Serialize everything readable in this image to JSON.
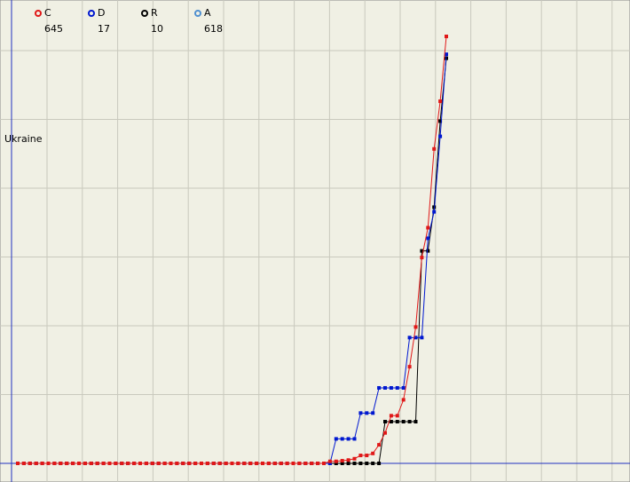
{
  "chart_data": {
    "type": "line",
    "label": "Ukraine",
    "categories": [
      null,
      null,
      null,
      null,
      null,
      null,
      null,
      null,
      null,
      null,
      null,
      null,
      null,
      null,
      null,
      null,
      null,
      null,
      null,
      null,
      null,
      null,
      null,
      null,
      null,
      null,
      null,
      null,
      null,
      null,
      null,
      null,
      null,
      null,
      null,
      null,
      null,
      null,
      null,
      null,
      null,
      null,
      null,
      null,
      null,
      null,
      null,
      null,
      null,
      null,
      null,
      null,
      null,
      null,
      null,
      null,
      null,
      null,
      null,
      null,
      null,
      null,
      null,
      null,
      null,
      null,
      null,
      null,
      null,
      null,
      null
    ],
    "ylim": [
      0,
      700
    ],
    "series": [
      {
        "name": "C",
        "color": "#e01818",
        "total": 645,
        "values": [
          0,
          0,
          0,
          0,
          0,
          0,
          0,
          0,
          0,
          0,
          0,
          0,
          0,
          0,
          0,
          0,
          0,
          0,
          0,
          0,
          0,
          0,
          0,
          0,
          0,
          0,
          0,
          0,
          0,
          0,
          0,
          0,
          0,
          0,
          0,
          0,
          0,
          0,
          0,
          0,
          0,
          0,
          0,
          0,
          0,
          0,
          0,
          0,
          0,
          0,
          0,
          3,
          3,
          4,
          5,
          7,
          12,
          12,
          15,
          28,
          46,
          72,
          72,
          96,
          146,
          206,
          311,
          356,
          475,
          547,
          645
        ]
      },
      {
        "name": "D",
        "color": "#0018d0",
        "total": 17,
        "values": [
          0,
          0,
          0,
          0,
          0,
          0,
          0,
          0,
          0,
          0,
          0,
          0,
          0,
          0,
          0,
          0,
          0,
          0,
          0,
          0,
          0,
          0,
          0,
          0,
          0,
          0,
          0,
          0,
          0,
          0,
          0,
          0,
          0,
          0,
          0,
          0,
          0,
          0,
          0,
          0,
          0,
          0,
          0,
          0,
          0,
          0,
          0,
          0,
          0,
          0,
          0,
          0,
          37,
          37,
          37,
          37,
          76,
          76,
          76,
          114,
          114,
          114,
          114,
          114,
          190,
          190,
          190,
          340,
          380,
          494,
          618
        ]
      },
      {
        "name": "R",
        "color": "#000000",
        "total": 10,
        "values": [
          0,
          0,
          0,
          0,
          0,
          0,
          0,
          0,
          0,
          0,
          0,
          0,
          0,
          0,
          0,
          0,
          0,
          0,
          0,
          0,
          0,
          0,
          0,
          0,
          0,
          0,
          0,
          0,
          0,
          0,
          0,
          0,
          0,
          0,
          0,
          0,
          0,
          0,
          0,
          0,
          0,
          0,
          0,
          0,
          0,
          0,
          0,
          0,
          0,
          0,
          0,
          0,
          0,
          0,
          0,
          0,
          0,
          0,
          0,
          0,
          63,
          63,
          63,
          63,
          63,
          63,
          321,
          321,
          387,
          517,
          612
        ]
      },
      {
        "name": "A",
        "color": "#5090d0",
        "total": 618
      }
    ]
  }
}
